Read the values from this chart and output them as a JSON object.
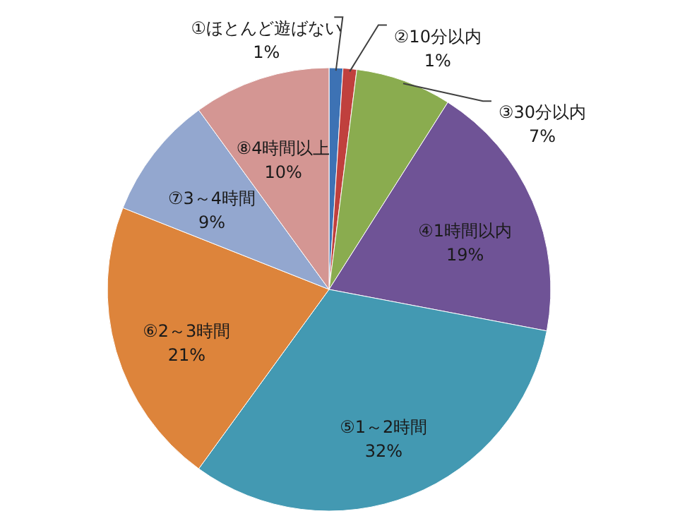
{
  "chart_data": {
    "type": "pie",
    "categories": [
      "①ほとんど遊ばない",
      "②10分以内",
      "③30分以内",
      "④1時間以内",
      "⑤1～2時間",
      "⑥2～3時間",
      "⑦3～4時間",
      "⑧4時間以上"
    ],
    "values": [
      1,
      1,
      7,
      19,
      32,
      21,
      9,
      10
    ],
    "value_labels": [
      "1%",
      "1%",
      "7%",
      "19%",
      "32%",
      "21%",
      "9%",
      "10%"
    ],
    "colors": [
      "#3d72b4",
      "#c0403d",
      "#8aac4f",
      "#6f5396",
      "#4399b2",
      "#dd843b",
      "#93a7cf",
      "#d49693"
    ]
  }
}
